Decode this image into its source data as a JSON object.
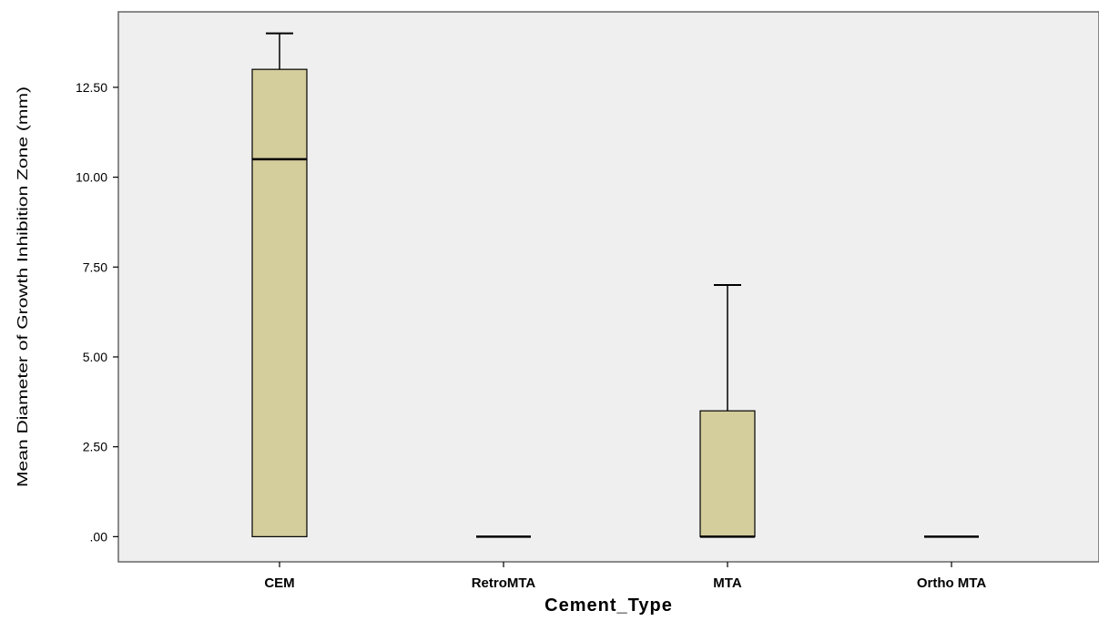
{
  "chart_data": {
    "type": "boxplot",
    "title": "",
    "xlabel": "Cement_Type",
    "ylabel": "Mean Diameter of Growth Inhibition Zone (mm)",
    "ylim": [
      -0.7,
      14.6
    ],
    "y_ticks": [
      0,
      2.5,
      5,
      7.5,
      10,
      12.5
    ],
    "y_tick_labels": [
      ".00",
      "2.50",
      "5.00",
      "7.50",
      "10.00",
      "12.50"
    ],
    "categories": [
      "CEM",
      "RetroMTA",
      "MTA",
      "Ortho MTA"
    ],
    "boxes": [
      {
        "category": "CEM",
        "min": 0,
        "q1": 0,
        "median": 10.5,
        "q3": 13,
        "max": 14
      },
      {
        "category": "RetroMTA",
        "min": 0,
        "q1": 0,
        "median": 0,
        "q3": 0,
        "max": 0
      },
      {
        "category": "MTA",
        "min": 0,
        "q1": 0,
        "median": 0,
        "q3": 3.5,
        "max": 7
      },
      {
        "category": "Ortho MTA",
        "min": 0,
        "q1": 0,
        "median": 0,
        "q3": 0,
        "max": 0
      }
    ],
    "grid": false,
    "colors": {
      "plot_background": "#efefef",
      "box_fill": "#d4cd9c",
      "stroke": "#000000",
      "frame": "#666666"
    }
  }
}
